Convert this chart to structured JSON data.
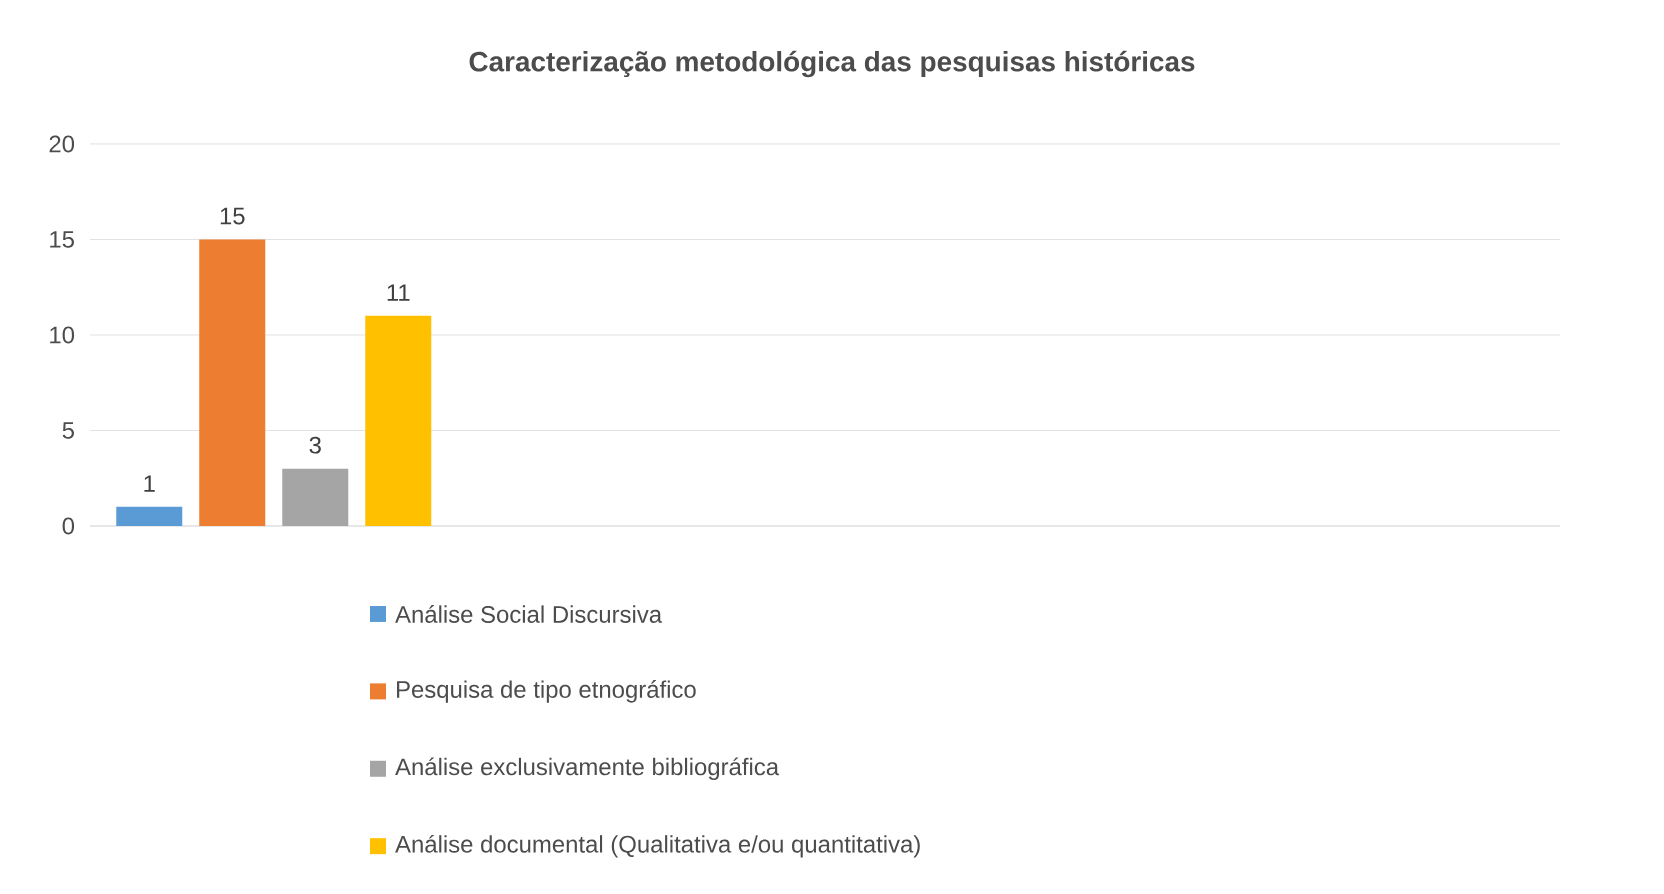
{
  "chart_data": {
    "type": "bar",
    "title": "Caracterização metodológica das pesquisas históricas",
    "categories": [
      null,
      null,
      null,
      null
    ],
    "series": [
      {
        "name": "Análise Social Discursiva",
        "color": "#5b9bd5",
        "values": [
          1,
          null,
          null,
          null
        ]
      },
      {
        "name": "Pesquisa de tipo etnográfico",
        "color": "#ed7d31",
        "values": [
          15,
          null,
          null,
          null
        ]
      },
      {
        "name": "Análise exclusivamente bibliográfica",
        "color": "#a5a5a5",
        "values": [
          3,
          null,
          null,
          null
        ]
      },
      {
        "name": "Análise documental (Qualitativa e/ou quantitativa)",
        "color": "#ffc000",
        "values": [
          11,
          null,
          null,
          null
        ]
      }
    ],
    "ylim": [
      0,
      20
    ],
    "yticks": [
      0,
      5,
      10,
      15,
      20
    ],
    "grid": "y",
    "data_labels": true,
    "legend": "bottom"
  }
}
